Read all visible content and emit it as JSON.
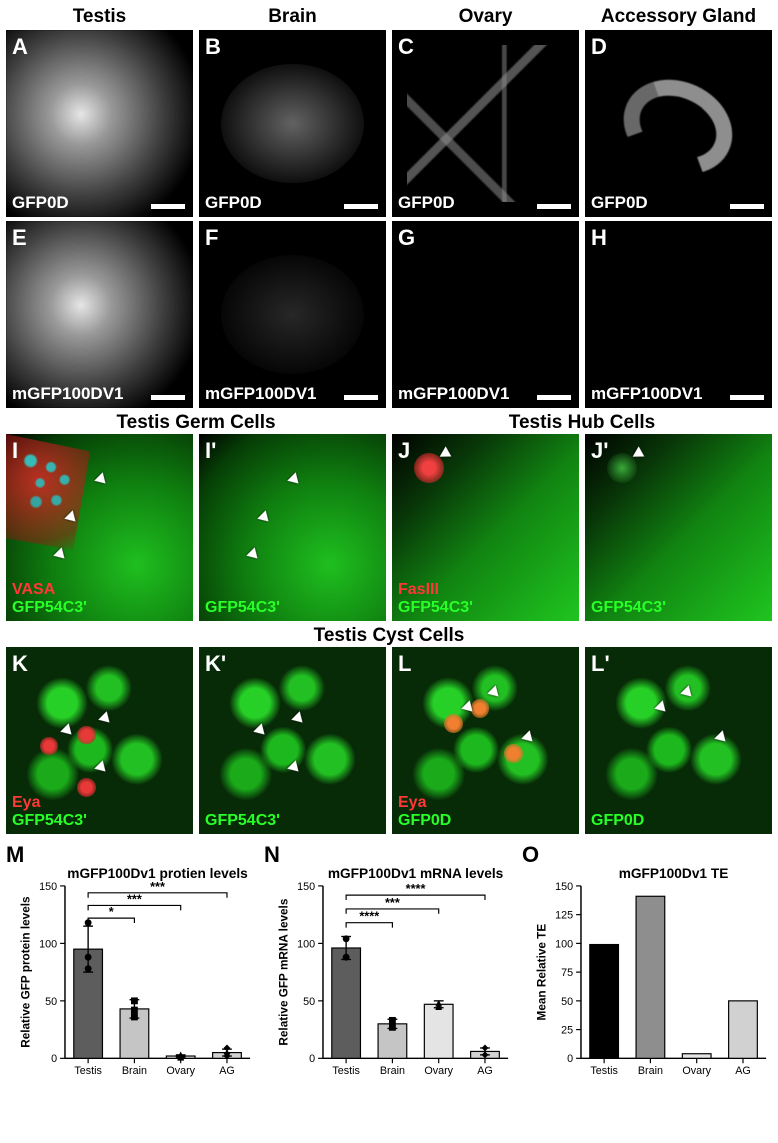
{
  "organ_headers": [
    "Testis",
    "Brain",
    "Ovary",
    "Accessory Gland"
  ],
  "rowAH": {
    "labels_row1": "GFP0D",
    "labels_row2": "mGFP100DV1",
    "letters_row1": [
      "A",
      "B",
      "C",
      "D"
    ],
    "letters_row2": [
      "E",
      "F",
      "G",
      "H"
    ]
  },
  "sectionIJ_header_left": "Testis Germ Cells",
  "sectionIJ_header_right": "Testis Hub Cells",
  "sectionKL_header": "Testis Cyst Cells",
  "panelI": {
    "letter": "I",
    "red_label": "VASA",
    "green_label": "GFP54C3'"
  },
  "panelIp": {
    "letter": "I'",
    "green_label": "GFP54C3'"
  },
  "panelJ": {
    "letter": "J",
    "red_label": "FasIII",
    "green_label": "GFP54C3'"
  },
  "panelJp": {
    "letter": "J'",
    "green_label": "GFP54C3'"
  },
  "panelK": {
    "letter": "K",
    "red_label": "Eya",
    "green_label": "GFP54C3'"
  },
  "panelKp": {
    "letter": "K'",
    "green_label": "GFP54C3'"
  },
  "panelL": {
    "letter": "L",
    "red_label": "Eya",
    "green_label": "GFP0D"
  },
  "panelLp": {
    "letter": "L'",
    "green_label": "GFP0D"
  },
  "chartM": {
    "type": "bar",
    "letter": "M",
    "title": "mGFP100Dv1 protien levels",
    "ylabel": "Relative GFP protein levels",
    "categories": [
      "Testis",
      "Brain",
      "Ovary",
      "AG"
    ],
    "means": [
      95,
      43,
      2,
      5
    ],
    "errors": [
      20,
      8,
      1,
      3
    ],
    "points": [
      [
        78,
        88,
        118
      ],
      [
        36,
        42,
        50
      ],
      [
        1,
        2,
        3
      ],
      [
        2,
        4,
        9
      ]
    ],
    "point_markers": [
      "circle",
      "square",
      "triangle",
      "diamond"
    ],
    "bar_colors": [
      "#5d5d5d",
      "#c5c5c5",
      "#e4e4e4",
      "#d1d1d1"
    ],
    "outline": "#000000",
    "ylim": [
      0,
      150
    ],
    "ytick_step": 50,
    "sig": [
      {
        "from": 0,
        "to": 1,
        "label": "*",
        "y": 122
      },
      {
        "from": 0,
        "to": 2,
        "label": "***",
        "y": 133
      },
      {
        "from": 0,
        "to": 3,
        "label": "***",
        "y": 144
      }
    ],
    "label_fontsize": 12,
    "tick_fontsize": 11,
    "title_fontsize": 14,
    "bar_width": 0.62
  },
  "chartN": {
    "type": "bar",
    "letter": "N",
    "title": "mGFP100Dv1 mRNA levels",
    "ylabel": "Relative GFP mRNA levels",
    "categories": [
      "Testis",
      "Brain",
      "Ovary",
      "AG"
    ],
    "means": [
      96,
      30,
      47,
      6
    ],
    "errors": [
      10,
      4,
      3,
      3
    ],
    "points": [
      [
        88,
        104
      ],
      [
        27,
        33
      ],
      [
        45,
        48
      ],
      [
        3,
        9
      ]
    ],
    "point_markers": [
      "circle",
      "square",
      "triangle",
      "diamond"
    ],
    "bar_colors": [
      "#5d5d5d",
      "#c5c5c5",
      "#e4e4e4",
      "#d1d1d1"
    ],
    "outline": "#000000",
    "ylim": [
      0,
      150
    ],
    "ytick_step": 50,
    "sig": [
      {
        "from": 0,
        "to": 1,
        "label": "****",
        "y": 118
      },
      {
        "from": 0,
        "to": 2,
        "label": "***",
        "y": 130
      },
      {
        "from": 0,
        "to": 3,
        "label": "****",
        "y": 142
      }
    ],
    "label_fontsize": 12,
    "tick_fontsize": 11,
    "title_fontsize": 14,
    "bar_width": 0.62
  },
  "chartO": {
    "type": "bar",
    "letter": "O",
    "title": "mGFP100Dv1 TE",
    "ylabel": "Mean Relative TE",
    "categories": [
      "Testis",
      "Brain",
      "Ovary",
      "AG"
    ],
    "means": [
      99,
      141,
      4,
      50
    ],
    "bar_colors": [
      "#000000",
      "#8e8e8e",
      "#e4e4e4",
      "#d1d1d1"
    ],
    "outline": "#000000",
    "ylim": [
      0,
      150
    ],
    "ytick_step": 25,
    "label_fontsize": 12,
    "tick_fontsize": 11,
    "title_fontsize": 14,
    "bar_width": 0.62
  }
}
